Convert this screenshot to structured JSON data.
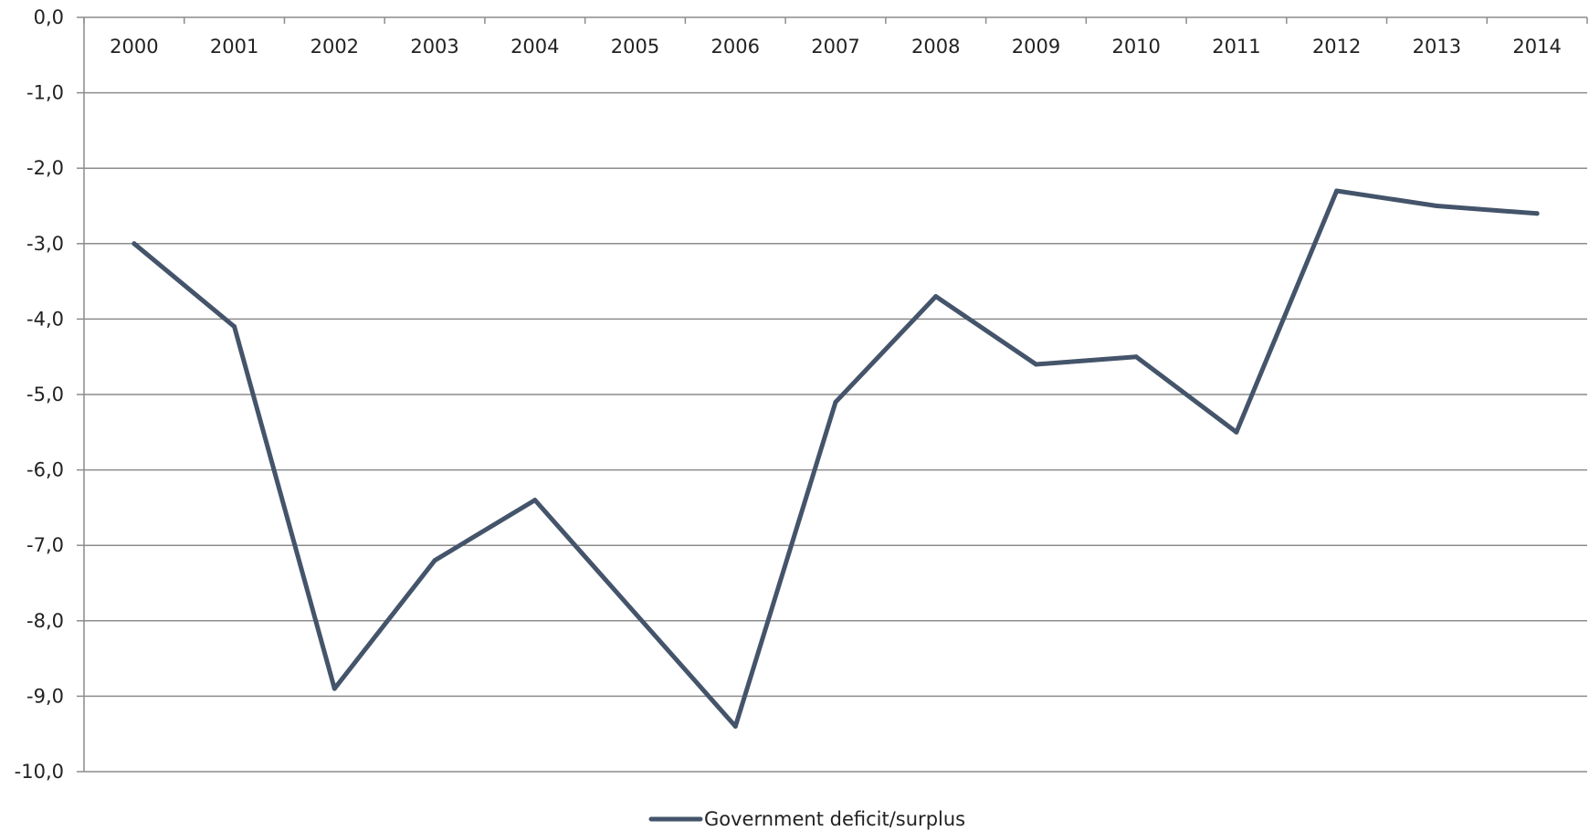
{
  "chart_data": {
    "type": "line",
    "categories": [
      "2000",
      "2001",
      "2002",
      "2003",
      "2004",
      "2005",
      "2006",
      "2007",
      "2008",
      "2009",
      "2010",
      "2011",
      "2012",
      "2013",
      "2014"
    ],
    "series": [
      {
        "name": "Government deficit/surplus",
        "values": [
          -3.0,
          -4.1,
          -8.9,
          -7.2,
          -6.4,
          -7.9,
          -9.4,
          -5.1,
          -3.7,
          -4.6,
          -4.5,
          -5.5,
          -2.3,
          -2.5,
          -2.6
        ],
        "color": "#44546a"
      }
    ],
    "ylim": [
      -10,
      0
    ],
    "ytick_labels": [
      "0,0",
      "-1,0",
      "-2,0",
      "-3,0",
      "-4,0",
      "-5,0",
      "-6,0",
      "-7,0",
      "-8,0",
      "-9,0",
      "-10,0"
    ],
    "xaxis_position": "top",
    "grid": true,
    "legend_position": "bottom-center",
    "title": "",
    "xlabel": "",
    "ylabel": ""
  }
}
